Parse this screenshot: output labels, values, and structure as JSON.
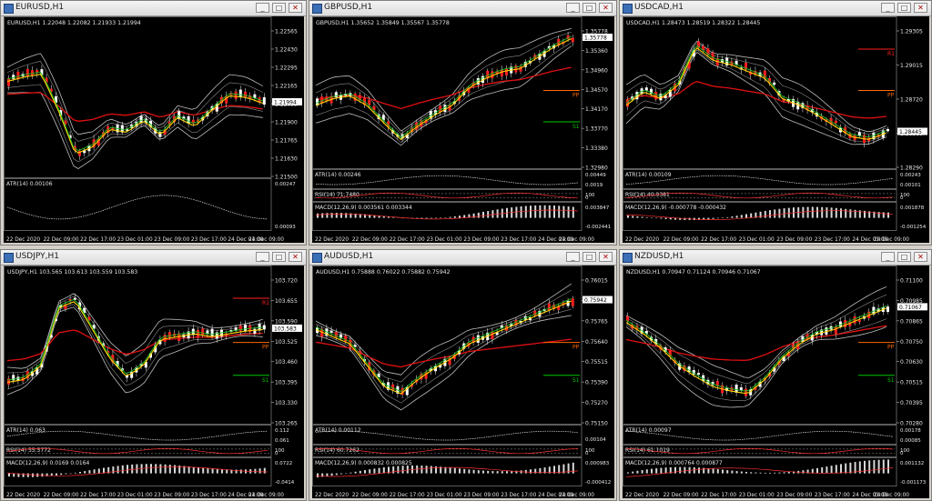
{
  "windows": [
    {
      "title": "EURUSD,H1",
      "info": "EURUSD,H1  1.22048 1.22082 1.21933 1.21994",
      "price_scale": [
        "1.22565",
        "1.22430",
        "1.22295",
        "1.22165",
        "1.22035",
        "1.21900",
        "1.21765",
        "1.21630",
        "1.21500"
      ],
      "current_price": "1.21994",
      "levels": [],
      "indicators": [
        {
          "label": "ATR(14) 0.00106",
          "scale": [
            "0.00247",
            "0.00093"
          ]
        }
      ],
      "time_labels": [
        "22 Dec 2020",
        "22 Dec 09:00",
        "22 Dec 17:00",
        "23 Dec 01:00",
        "23 Dec 09:00",
        "23 Dec 17:00",
        "24 Dec 01:00",
        "24 Dec 09:00"
      ]
    },
    {
      "title": "GBPUSD,H1",
      "info": "GBPUSD,H1  1.35652 1.35849 1.35567 1.35778",
      "price_scale": [
        "1.35778",
        "1.35360",
        "1.34960",
        "1.34570",
        "1.34170",
        "1.33770",
        "1.33380",
        "1.32980"
      ],
      "current_price": "1.35778",
      "levels": [
        {
          "label": "PP",
          "color": "#ff6a00"
        },
        {
          "label": "S1",
          "color": "#00c800"
        }
      ],
      "indicators": [
        {
          "label": "ATR(14) 0.00246",
          "scale": [
            "0.00449",
            "0.0019"
          ]
        },
        {
          "label": "RSI(14) 71.7480",
          "scale": [
            "100",
            "0"
          ]
        },
        {
          "label": "MACD(12,26,9) 0.003561 0.003344",
          "scale": [
            "0.003847",
            "-0.002441"
          ]
        }
      ],
      "time_labels": [
        "22 Dec 2020",
        "22 Dec 09:00",
        "22 Dec 17:00",
        "23 Dec 01:00",
        "23 Dec 09:00",
        "23 Dec 17:00",
        "24 Dec 01:00",
        "24 Dec 09:00"
      ]
    },
    {
      "title": "USDCAD,H1",
      "info": "USDCAD,H1  1.28473 1.28519 1.28322 1.28445",
      "price_scale": [
        "1.29305",
        "1.29015",
        "1.28720",
        "1.28580",
        "1.28290"
      ],
      "current_price": "1.28445",
      "levels": [
        {
          "label": "R1",
          "color": "#ff2020"
        },
        {
          "label": "PP",
          "color": "#ff6a00"
        }
      ],
      "indicators": [
        {
          "label": "ATR(14) 0.00109",
          "scale": [
            "0.00243",
            "0.00101"
          ]
        },
        {
          "label": "RSI(14) 40.9381",
          "scale": [
            "100",
            "0"
          ]
        },
        {
          "label": "MACD(12,26,9) -0.000778 -0.000432",
          "scale": [
            "0.001878",
            "-0.001254"
          ]
        }
      ],
      "time_labels": [
        "22 Dec 2020",
        "22 Dec 09:00",
        "22 Dec 17:00",
        "23 Dec 01:00",
        "23 Dec 09:00",
        "23 Dec 17:00",
        "24 Dec 01:00",
        "24 Dec 09:00"
      ]
    },
    {
      "title": "USDJPY,H1",
      "info": "USDJPY,H1  103.565 103.613 103.559 103.583",
      "price_scale": [
        "103.720",
        "103.655",
        "103.590",
        "103.525",
        "103.460",
        "103.395",
        "103.330",
        "103.265"
      ],
      "current_price": "103.583",
      "levels": [
        {
          "label": "R1",
          "color": "#ff2020"
        },
        {
          "label": "PP",
          "color": "#ff6a00"
        },
        {
          "label": "S1",
          "color": "#00c800"
        }
      ],
      "indicators": [
        {
          "label": "ATR(14) 0.063",
          "scale": [
            "0.112",
            "0.061"
          ]
        },
        {
          "label": "RSI(14) 55.5772",
          "scale": [
            "100",
            "0"
          ]
        },
        {
          "label": "MACD(12,26,9) 0.0169 0.0164",
          "scale": [
            "0.0722",
            "-0.0414"
          ]
        }
      ],
      "time_labels": [
        "22 Dec 2020",
        "22 Dec 09:00",
        "22 Dec 17:00",
        "23 Dec 01:00",
        "23 Dec 09:00",
        "23 Dec 17:00",
        "24 Dec 01:00",
        "24 Dec 09:00"
      ]
    },
    {
      "title": "AUDUSD,H1",
      "info": "AUDUSD,H1  0.75888 0.76022 0.75882 0.75942",
      "price_scale": [
        "0.76015",
        "0.75890",
        "0.75765",
        "0.75640",
        "0.75515",
        "0.75390",
        "0.75270",
        "0.75150"
      ],
      "current_price": "0.75942",
      "levels": [
        {
          "label": "PP",
          "color": "#ff6a00"
        },
        {
          "label": "S1",
          "color": "#00c800"
        }
      ],
      "indicators": [
        {
          "label": "ATR(14) 0.00112",
          "scale": [
            "0.00104"
          ]
        },
        {
          "label": "RSI(14) 60.7262",
          "scale": [
            "100",
            "0"
          ]
        },
        {
          "label": "MACD(12,26,9) 0.000832 0.000825",
          "scale": [
            "0.000983",
            "-0.000412"
          ]
        }
      ],
      "time_labels": [
        "22 Dec 2020",
        "22 Dec 09:00",
        "22 Dec 17:00",
        "23 Dec 01:00",
        "23 Dec 09:00",
        "23 Dec 17:00",
        "24 Dec 01:00",
        "24 Dec 09:00"
      ]
    },
    {
      "title": "NZDUSD,H1",
      "info": "NZDUSD,H1  0.70947 0.71124 0.70946 0.71067",
      "price_scale": [
        "0.71100",
        "0.70985",
        "0.70865",
        "0.70750",
        "0.70630",
        "0.70515",
        "0.70395",
        "0.70280"
      ],
      "current_price": "0.71067",
      "levels": [
        {
          "label": "PP",
          "color": "#ff6a00"
        },
        {
          "label": "S1",
          "color": "#00c800"
        }
      ],
      "indicators": [
        {
          "label": "ATR(14) 0.00097",
          "scale": [
            "0.00178",
            "0.00085"
          ]
        },
        {
          "label": "RSI(14) 61.1019",
          "scale": [
            "100",
            "0"
          ]
        },
        {
          "label": "MACD(12,26,9) 0.000764 0.000877",
          "scale": [
            "0.001132",
            "-0.001173"
          ]
        }
      ],
      "time_labels": [
        "22 Dec 2020",
        "22 Dec 09:00",
        "22 Dec 17:00",
        "23 Dec 01:00",
        "23 Dec 09:00",
        "23 Dec 17:00",
        "24 Dec 01:00",
        "24 Dec 09:00"
      ]
    }
  ],
  "colors": {
    "bull_candle": "#ffffff",
    "bear_candle": "#ff1e1e",
    "ma_yellow": "#ffd700",
    "ma_green": "#21c021",
    "ma_red": "#e01010",
    "bands": "#bdbdbd"
  }
}
